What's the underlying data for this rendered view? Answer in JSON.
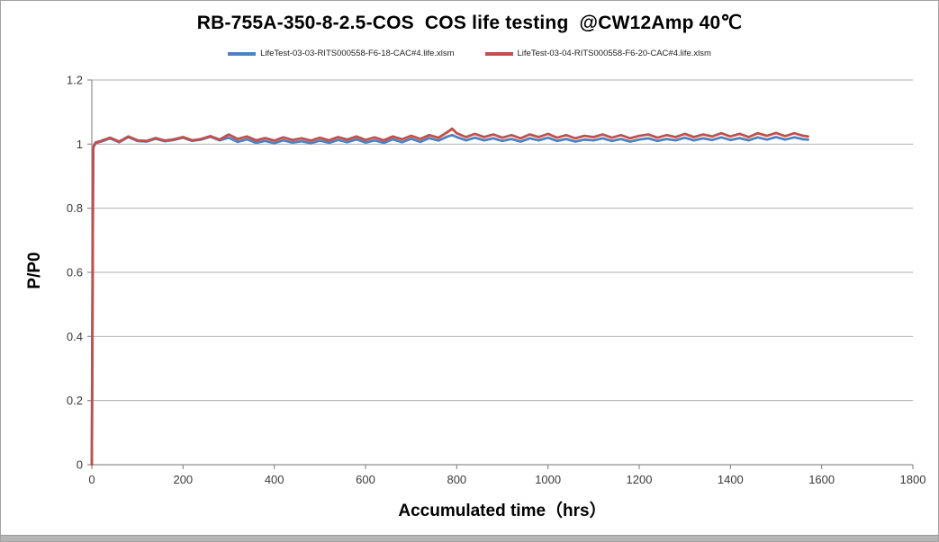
{
  "chart_data": {
    "type": "line",
    "title": "RB-755A-350-8-2.5-COS  COS life testing  @CW12Amp 40℃",
    "xlabel": "Accumulated time（hrs）",
    "ylabel": "P/P0",
    "xlim": [
      0,
      1800
    ],
    "ylim": [
      0,
      1.2
    ],
    "xtick_values": [
      0,
      200,
      400,
      600,
      800,
      1000,
      1200,
      1400,
      1600,
      1800
    ],
    "xtick_labels": [
      "0",
      "200",
      "400",
      "600",
      "800",
      "1000",
      "1200",
      "1400",
      "1600",
      "1800"
    ],
    "ytick_values": [
      0,
      0.2,
      0.4,
      0.6,
      0.8,
      1,
      1.2
    ],
    "ytick_labels": [
      "0",
      "0.2",
      "0.4",
      "0.6",
      "0.8",
      "1",
      "1.2"
    ],
    "grid": "horizontal",
    "legend_position": "top",
    "axis_color": "#8f8f8f",
    "gridline_color": "#b0b0b0",
    "tick_label_color": "#3a3a3a",
    "series": [
      {
        "name": "LifeTest-03-03-RITS000558-F6-18-CAC#4.life.xlsm",
        "color": "#4F81BD",
        "x": [
          0,
          3,
          8,
          20,
          40,
          60,
          80,
          100,
          120,
          140,
          160,
          180,
          200,
          220,
          240,
          260,
          280,
          300,
          320,
          340,
          360,
          380,
          400,
          420,
          440,
          460,
          480,
          500,
          520,
          540,
          560,
          580,
          600,
          620,
          640,
          660,
          680,
          700,
          720,
          740,
          760,
          780,
          790,
          800,
          820,
          840,
          860,
          880,
          900,
          920,
          940,
          960,
          980,
          1000,
          1020,
          1040,
          1060,
          1080,
          1100,
          1120,
          1140,
          1160,
          1180,
          1200,
          1220,
          1240,
          1260,
          1280,
          1300,
          1320,
          1340,
          1360,
          1380,
          1400,
          1420,
          1440,
          1460,
          1480,
          1500,
          1520,
          1540,
          1560,
          1570
        ],
        "y": [
          0,
          0.988,
          1.003,
          1.008,
          1.018,
          1.006,
          1.022,
          1.01,
          1.008,
          1.017,
          1.009,
          1.013,
          1.02,
          1.01,
          1.014,
          1.023,
          1.012,
          1.02,
          1.007,
          1.015,
          1.004,
          1.01,
          1.003,
          1.012,
          1.005,
          1.009,
          1.003,
          1.011,
          1.004,
          1.013,
          1.006,
          1.015,
          1.005,
          1.012,
          1.004,
          1.015,
          1.006,
          1.017,
          1.007,
          1.019,
          1.011,
          1.024,
          1.028,
          1.022,
          1.012,
          1.02,
          1.012,
          1.018,
          1.01,
          1.016,
          1.008,
          1.018,
          1.012,
          1.02,
          1.01,
          1.016,
          1.008,
          1.014,
          1.012,
          1.018,
          1.01,
          1.016,
          1.008,
          1.014,
          1.018,
          1.01,
          1.016,
          1.012,
          1.02,
          1.012,
          1.018,
          1.013,
          1.021,
          1.013,
          1.019,
          1.012,
          1.021,
          1.014,
          1.022,
          1.014,
          1.021,
          1.015,
          1.014
        ]
      },
      {
        "name": "LifeTest-03-04-RITS000558-F6-20-CAC#4.life.xlsm",
        "color": "#C0504D",
        "x": [
          0,
          3,
          8,
          20,
          40,
          60,
          80,
          100,
          120,
          140,
          160,
          180,
          200,
          220,
          240,
          260,
          280,
          300,
          320,
          340,
          360,
          380,
          400,
          420,
          440,
          460,
          480,
          500,
          520,
          540,
          560,
          580,
          600,
          620,
          640,
          660,
          680,
          700,
          720,
          740,
          760,
          780,
          790,
          800,
          820,
          840,
          860,
          880,
          900,
          920,
          940,
          960,
          980,
          1000,
          1020,
          1040,
          1060,
          1080,
          1100,
          1120,
          1140,
          1160,
          1180,
          1200,
          1220,
          1240,
          1260,
          1280,
          1300,
          1320,
          1340,
          1360,
          1380,
          1400,
          1420,
          1440,
          1460,
          1480,
          1500,
          1520,
          1540,
          1560,
          1570
        ],
        "y": [
          0,
          0.99,
          1.005,
          1.01,
          1.02,
          1.008,
          1.024,
          1.012,
          1.01,
          1.019,
          1.011,
          1.015,
          1.022,
          1.012,
          1.016,
          1.025,
          1.014,
          1.03,
          1.016,
          1.024,
          1.012,
          1.019,
          1.011,
          1.021,
          1.013,
          1.018,
          1.011,
          1.02,
          1.012,
          1.022,
          1.014,
          1.024,
          1.013,
          1.021,
          1.012,
          1.024,
          1.015,
          1.026,
          1.016,
          1.028,
          1.02,
          1.038,
          1.048,
          1.034,
          1.022,
          1.032,
          1.022,
          1.03,
          1.02,
          1.028,
          1.018,
          1.03,
          1.022,
          1.032,
          1.02,
          1.028,
          1.018,
          1.026,
          1.022,
          1.03,
          1.02,
          1.028,
          1.018,
          1.026,
          1.03,
          1.02,
          1.028,
          1.022,
          1.032,
          1.022,
          1.03,
          1.024,
          1.034,
          1.024,
          1.032,
          1.022,
          1.034,
          1.026,
          1.035,
          1.025,
          1.034,
          1.026,
          1.024
        ]
      }
    ]
  }
}
